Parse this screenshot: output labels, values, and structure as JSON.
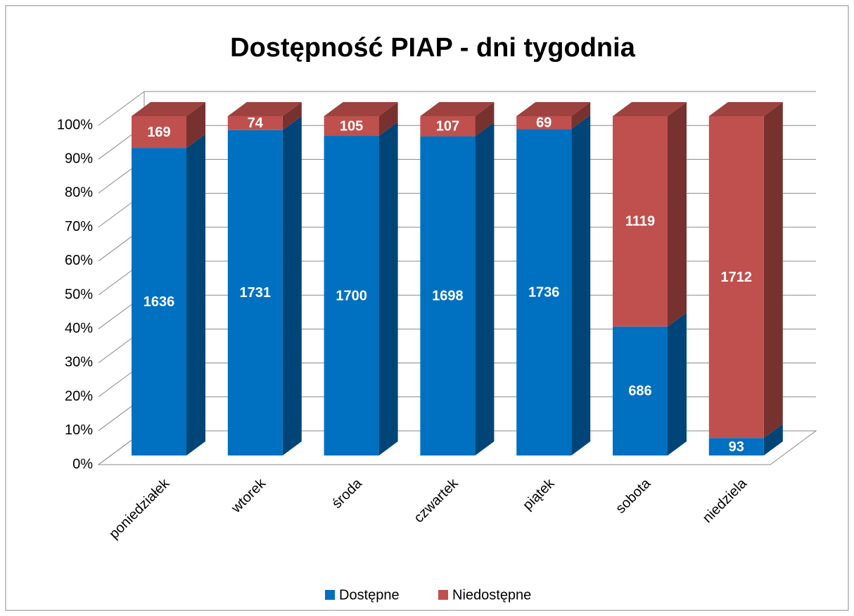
{
  "chart_data": {
    "type": "bar",
    "stack": "percent",
    "title": "Dostępność PIAP - dni tygodnia",
    "categories": [
      "poniedziałek",
      "wtorek",
      "środa",
      "czwartek",
      "piątek",
      "sobota",
      "niedziela"
    ],
    "series": [
      {
        "name": "Dostępne",
        "color": "#0070c0",
        "values": [
          1636,
          1731,
          1700,
          1698,
          1736,
          686,
          93
        ]
      },
      {
        "name": "Niedostępne",
        "color": "#c0504d",
        "values": [
          169,
          74,
          105,
          107,
          69,
          1119,
          1712
        ]
      }
    ],
    "ylim": [
      0,
      100
    ],
    "yticks": [
      {
        "value": 0,
        "label": "0%"
      },
      {
        "value": 10,
        "label": "10%"
      },
      {
        "value": 20,
        "label": "20%"
      },
      {
        "value": 30,
        "label": "30%"
      },
      {
        "value": 40,
        "label": "40%"
      },
      {
        "value": 50,
        "label": "50%"
      },
      {
        "value": 60,
        "label": "60%"
      },
      {
        "value": 70,
        "label": "70%"
      },
      {
        "value": 80,
        "label": "80%"
      },
      {
        "value": 90,
        "label": "90%"
      },
      {
        "value": 100,
        "label": "100%"
      }
    ],
    "grid": true,
    "legend": "bottom"
  }
}
